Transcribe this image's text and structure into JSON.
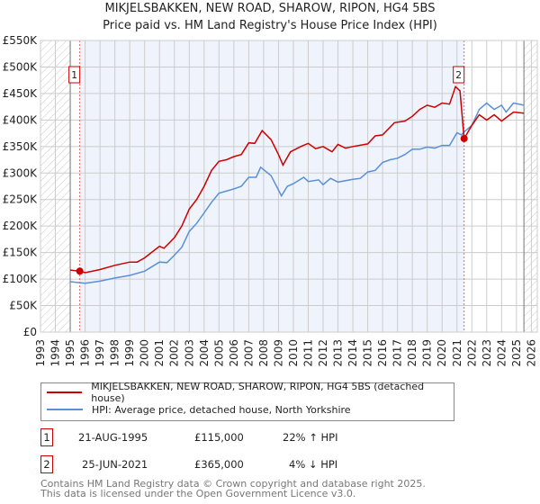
{
  "chart_data": {
    "type": "line",
    "title": "MIKJELSBAKKEN, NEW ROAD, SHAROW, RIPON, HG4 5BS",
    "subtitle": "Price paid vs. HM Land Registry's House Price Index (HPI)",
    "xlabel": "",
    "ylabel": "",
    "xlim": [
      1993,
      2026.4
    ],
    "ylim": [
      0,
      550000
    ],
    "x_ticks": [
      "1993",
      "1994",
      "1995",
      "1996",
      "1997",
      "1998",
      "1999",
      "2000",
      "2001",
      "2002",
      "2003",
      "2004",
      "2005",
      "2006",
      "2007",
      "2008",
      "2009",
      "2010",
      "2011",
      "2012",
      "2013",
      "2014",
      "2015",
      "2016",
      "2017",
      "2018",
      "2019",
      "2020",
      "2021",
      "2022",
      "2023",
      "2024",
      "2025",
      "2026"
    ],
    "y_ticks": [
      {
        "v": 0,
        "label": "£0"
      },
      {
        "v": 50000,
        "label": "£50K"
      },
      {
        "v": 100000,
        "label": "£100K"
      },
      {
        "v": 150000,
        "label": "£150K"
      },
      {
        "v": 200000,
        "label": "£200K"
      },
      {
        "v": 250000,
        "label": "£250K"
      },
      {
        "v": 300000,
        "label": "£300K"
      },
      {
        "v": 350000,
        "label": "£350K"
      },
      {
        "v": 400000,
        "label": "£400K"
      },
      {
        "v": 450000,
        "label": "£450K"
      },
      {
        "v": 500000,
        "label": "£500K"
      },
      {
        "v": 550000,
        "label": "£550K"
      }
    ],
    "grid": true,
    "hatched_before": 1995.0,
    "hatched_after": 2025.5,
    "shaded_range": [
      1995.64,
      2021.48
    ],
    "series": [
      {
        "name": "MIKJELSBAKKEN, NEW ROAD, SHAROW, RIPON, HG4 5BS (detached house)",
        "color": "#cc0000",
        "x": [
          1995,
          1995.64,
          1996,
          1997,
          1998,
          1999,
          1999.5,
          2000,
          2001,
          2001.3,
          2002,
          2002.5,
          2003,
          2003.5,
          2004,
          2004.5,
          2005,
          2005.5,
          2006,
          2006.5,
          2007,
          2007.4,
          2007.9,
          2008.5,
          2009,
          2009.3,
          2009.8,
          2010.5,
          2011,
          2011.5,
          2012,
          2012.6,
          2013,
          2013.5,
          2014,
          2015,
          2015.5,
          2016,
          2016.8,
          2017.5,
          2018,
          2018.5,
          2019,
          2019.5,
          2020,
          2020.5,
          2020.9,
          2021.2,
          2021.48,
          2022,
          2022.5,
          2023,
          2023.5,
          2024,
          2024.8,
          2025.5
        ],
        "y": [
          117000,
          115000,
          112000,
          118000,
          126000,
          132000,
          132000,
          140000,
          162000,
          158000,
          178000,
          200000,
          232000,
          250000,
          275000,
          305000,
          322000,
          325000,
          331000,
          335000,
          357000,
          356000,
          380000,
          363000,
          335000,
          315000,
          340000,
          350000,
          356000,
          346000,
          350000,
          340000,
          354000,
          347000,
          350000,
          355000,
          370000,
          372000,
          395000,
          398000,
          407000,
          420000,
          428000,
          424000,
          432000,
          430000,
          463000,
          455000,
          365000,
          390000,
          410000,
          400000,
          410000,
          398000,
          415000,
          413000
        ]
      },
      {
        "name": "HPI: Average price, detached house, North Yorkshire",
        "color": "#5b8fd6",
        "x": [
          1995,
          1996,
          1997,
          1998,
          1999,
          2000,
          2001,
          2001.5,
          2002,
          2002.5,
          2003,
          2003.5,
          2004,
          2004.5,
          2005,
          2006,
          2006.5,
          2007,
          2007.5,
          2007.8,
          2008.5,
          2009,
          2009.2,
          2009.6,
          2010,
          2010.7,
          2011,
          2011.7,
          2012,
          2012.5,
          2013,
          2014,
          2014.5,
          2015,
          2015.5,
          2016,
          2016.5,
          2017,
          2017.5,
          2018,
          2018.5,
          2019,
          2019.5,
          2020,
          2020.5,
          2021,
          2021.3,
          2021.5,
          2022,
          2022.5,
          2023,
          2023.5,
          2024,
          2024.3,
          2024.8,
          2025.5
        ],
        "y": [
          95000,
          92000,
          96000,
          102000,
          107000,
          115000,
          132000,
          131000,
          145000,
          160000,
          190000,
          205000,
          225000,
          245000,
          262000,
          270000,
          275000,
          292000,
          292000,
          311000,
          295000,
          268000,
          257000,
          275000,
          280000,
          292000,
          284000,
          287000,
          278000,
          290000,
          283000,
          288000,
          290000,
          302000,
          305000,
          320000,
          325000,
          328000,
          335000,
          345000,
          345000,
          349000,
          347000,
          352000,
          352000,
          376000,
          372000,
          378000,
          390000,
          420000,
          432000,
          420000,
          428000,
          415000,
          432000,
          428000
        ]
      }
    ],
    "sales": [
      {
        "label": "1",
        "x": 1995.64,
        "y": 115000,
        "date": "21-AUG-1995",
        "price": "£115,000",
        "hpi": "22% ↑ HPI"
      },
      {
        "label": "2",
        "x": 2021.48,
        "y": 365000,
        "date": "25-JUN-2021",
        "price": "£365,000",
        "hpi": "4% ↓ HPI"
      }
    ]
  },
  "footer": {
    "line1": "Contains HM Land Registry data © Crown copyright and database right 2025.",
    "line2": "This data is licensed under the Open Government Licence v3.0."
  }
}
